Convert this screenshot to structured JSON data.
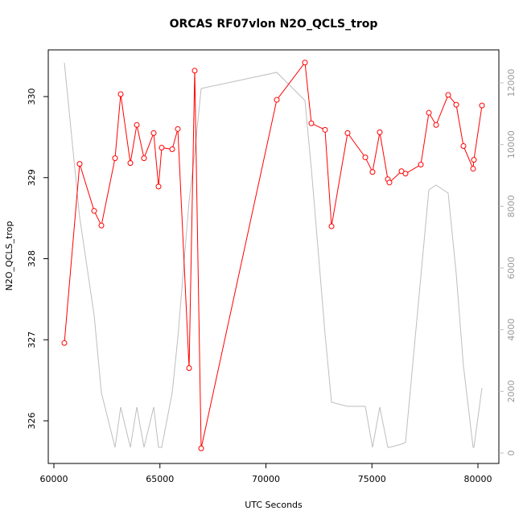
{
  "chart_data": {
    "type": "line",
    "title": "ORCAS RF07vlon N2O_QCLS_trop",
    "x_label": "UTC Seconds",
    "y_label": "N2O_QCLS_trop",
    "x": [
      60493,
      61214,
      61898,
      62239,
      62884,
      63150,
      63605,
      63909,
      64250,
      64706,
      64934,
      65085,
      65579,
      65844,
      66376,
      66641,
      66945,
      70512,
      71841,
      72144,
      72789,
      73093,
      73852,
      74687,
      75028,
      75370,
      75750,
      75825,
      76395,
      76584,
      77306,
      77685,
      78027,
      78596,
      78975,
      79317,
      79772,
      79810,
      80190
    ],
    "series": [
      {
        "color": "#bebebe",
        "axis": "y2",
        "marker": false,
        "values": [
          12653,
          7644,
          4461,
          1957,
          183,
          1487,
          183,
          1487,
          183,
          1487,
          183,
          183,
          1957,
          3731,
          8166,
          9731,
          11818,
          12340,
          11427,
          9210,
          3861,
          1644,
          1513,
          1513,
          183,
          1487,
          183,
          183,
          287,
          339,
          5713,
          8531,
          8688,
          8427,
          5818,
          2818,
          183,
          183,
          2113
        ]
      },
      {
        "color": "#ff0000",
        "axis": "y",
        "marker": true,
        "values": [
          326.96,
          329.17,
          328.59,
          328.41,
          329.24,
          330.03,
          329.18,
          329.65,
          329.24,
          329.55,
          328.89,
          329.37,
          329.35,
          329.6,
          326.65,
          330.32,
          325.66,
          329.96,
          330.42,
          329.67,
          329.59,
          328.4,
          329.55,
          329.25,
          329.07,
          329.56,
          328.98,
          328.94,
          329.08,
          329.05,
          329.16,
          329.8,
          329.65,
          330.02,
          329.9,
          329.39,
          329.11,
          329.22,
          329.89
        ]
      }
    ],
    "xlim": [
      59734,
      80987
    ],
    "xticks": [
      60000,
      65000,
      70000,
      75000,
      80000
    ],
    "ylim": [
      325.474,
      330.576
    ],
    "yticks": [
      326,
      327,
      328,
      329,
      330
    ],
    "y2lim": [
      -339,
      13070
    ],
    "y2ticks": [
      0,
      2000,
      4000,
      6000,
      8000,
      10000,
      12000
    ],
    "grid": false
  }
}
